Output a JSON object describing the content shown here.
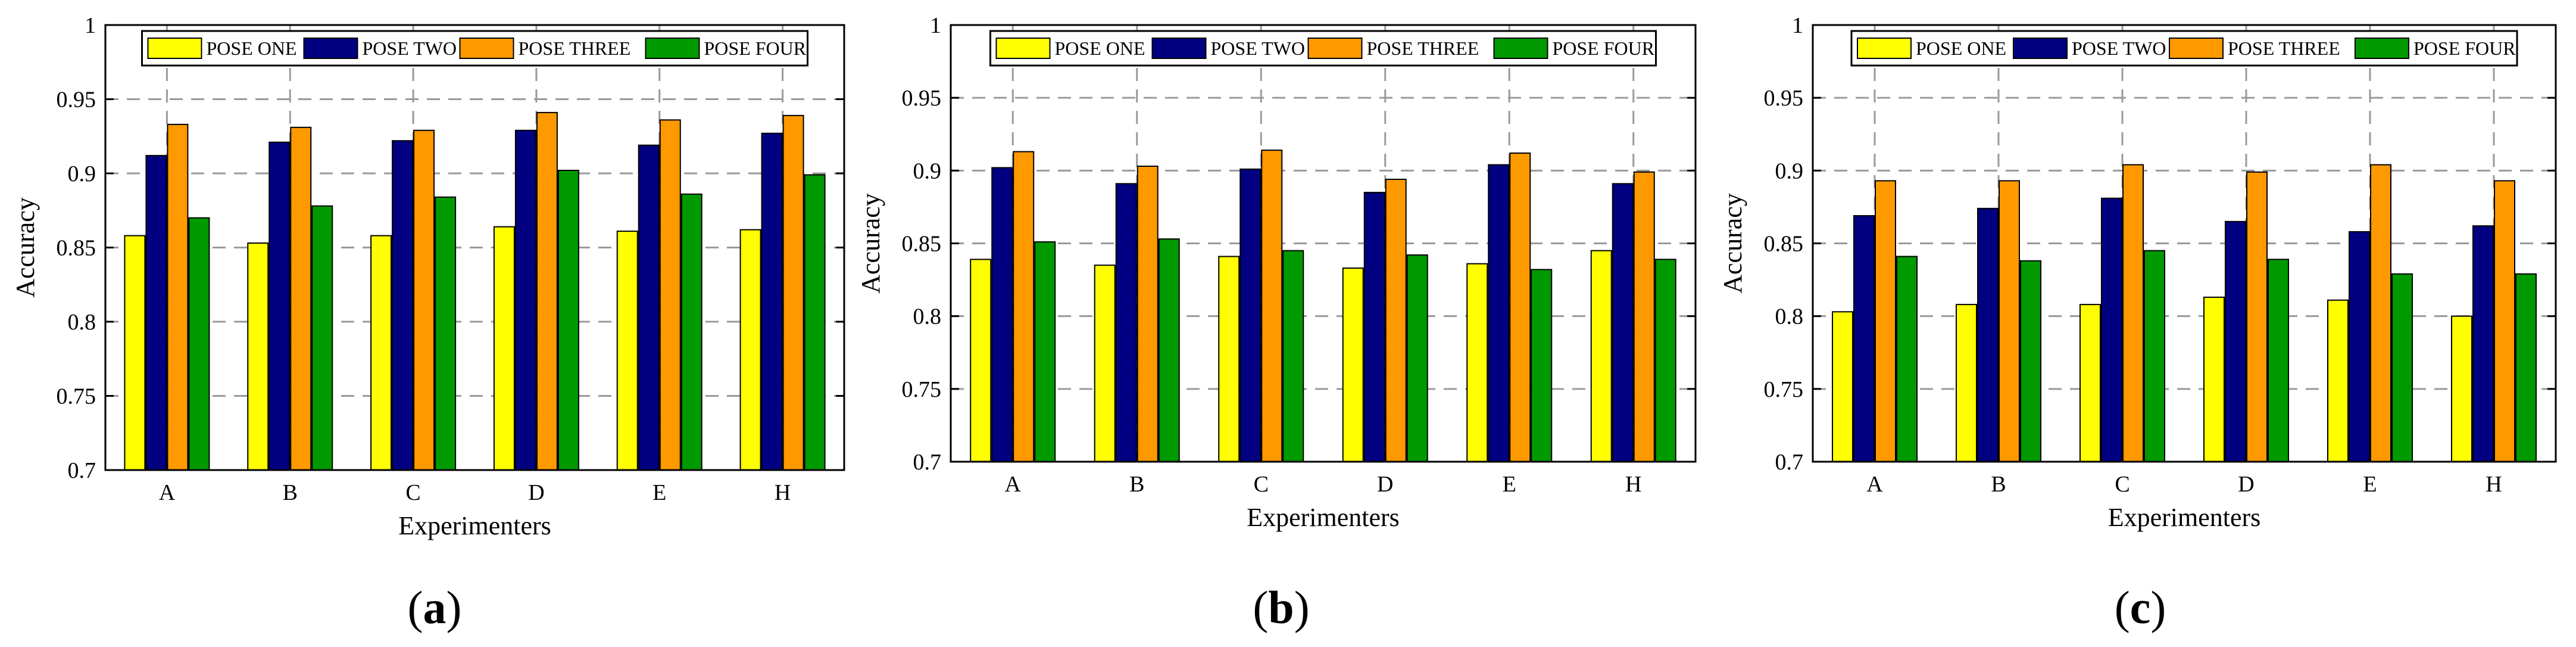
{
  "colors": {
    "pose_one": "#ffff00",
    "pose_two": "#000080",
    "pose_three": "#ff9900",
    "pose_four": "#009900",
    "grid": "#9a9a9a",
    "axis": "#000000"
  },
  "panels": [
    {
      "caption": "a",
      "chart_data": {
        "type": "bar",
        "title": "",
        "xlabel": "Experimenters",
        "ylabel": "Accuracy",
        "ylim": [
          0.7,
          1
        ],
        "yticks": [
          "0.7",
          "0.75",
          "0.8",
          "0.85",
          "0.9",
          "0.95",
          "1"
        ],
        "grid": true,
        "legend_placement": "top",
        "categories": [
          "A",
          "B",
          "C",
          "D",
          "E",
          "H"
        ],
        "series": [
          {
            "name": "POSE ONE",
            "color_key": "pose_one",
            "values": [
              0.858,
              0.853,
              0.858,
              0.864,
              0.861,
              0.862
            ]
          },
          {
            "name": "POSE TWO",
            "color_key": "pose_two",
            "values": [
              0.912,
              0.921,
              0.922,
              0.929,
              0.919,
              0.927
            ]
          },
          {
            "name": "POSE THREE",
            "color_key": "pose_three",
            "values": [
              0.933,
              0.931,
              0.929,
              0.941,
              0.936,
              0.939
            ]
          },
          {
            "name": "POSE FOUR",
            "color_key": "pose_four",
            "values": [
              0.87,
              0.878,
              0.884,
              0.902,
              0.886,
              0.899
            ]
          }
        ]
      }
    },
    {
      "caption": "b",
      "chart_data": {
        "type": "bar",
        "title": "",
        "xlabel": "Experimenters",
        "ylabel": "Accuracy",
        "ylim": [
          0.7,
          1
        ],
        "yticks": [
          "0.7",
          "0.75",
          "0.8",
          "0.85",
          "0.9",
          "0.95",
          "1"
        ],
        "grid": true,
        "legend_placement": "top",
        "categories": [
          "A",
          "B",
          "C",
          "D",
          "E",
          "H"
        ],
        "series": [
          {
            "name": "POSE ONE",
            "color_key": "pose_one",
            "values": [
              0.839,
              0.835,
              0.841,
              0.833,
              0.836,
              0.845
            ]
          },
          {
            "name": "POSE TWO",
            "color_key": "pose_two",
            "values": [
              0.902,
              0.891,
              0.901,
              0.885,
              0.904,
              0.891
            ]
          },
          {
            "name": "POSE THREE",
            "color_key": "pose_three",
            "values": [
              0.913,
              0.903,
              0.914,
              0.894,
              0.912,
              0.899
            ]
          },
          {
            "name": "POSE FOUR",
            "color_key": "pose_four",
            "values": [
              0.851,
              0.853,
              0.845,
              0.842,
              0.832,
              0.839
            ]
          }
        ]
      }
    },
    {
      "caption": "c",
      "chart_data": {
        "type": "bar",
        "title": "",
        "xlabel": "Experimenters",
        "ylabel": "Accuracy",
        "ylim": [
          0.7,
          1
        ],
        "yticks": [
          "0.7",
          "0.75",
          "0.8",
          "0.85",
          "0.9",
          "0.95",
          "1"
        ],
        "grid": true,
        "legend_placement": "top",
        "categories": [
          "A",
          "B",
          "C",
          "D",
          "E",
          "H"
        ],
        "series": [
          {
            "name": "POSE ONE",
            "color_key": "pose_one",
            "values": [
              0.803,
              0.808,
              0.808,
              0.813,
              0.811,
              0.8
            ]
          },
          {
            "name": "POSE TWO",
            "color_key": "pose_two",
            "values": [
              0.869,
              0.874,
              0.881,
              0.865,
              0.858,
              0.862
            ]
          },
          {
            "name": "POSE THREE",
            "color_key": "pose_three",
            "values": [
              0.893,
              0.893,
              0.904,
              0.899,
              0.904,
              0.893
            ]
          },
          {
            "name": "POSE FOUR",
            "color_key": "pose_four",
            "values": [
              0.841,
              0.838,
              0.845,
              0.839,
              0.829,
              0.829
            ]
          }
        ]
      }
    }
  ]
}
